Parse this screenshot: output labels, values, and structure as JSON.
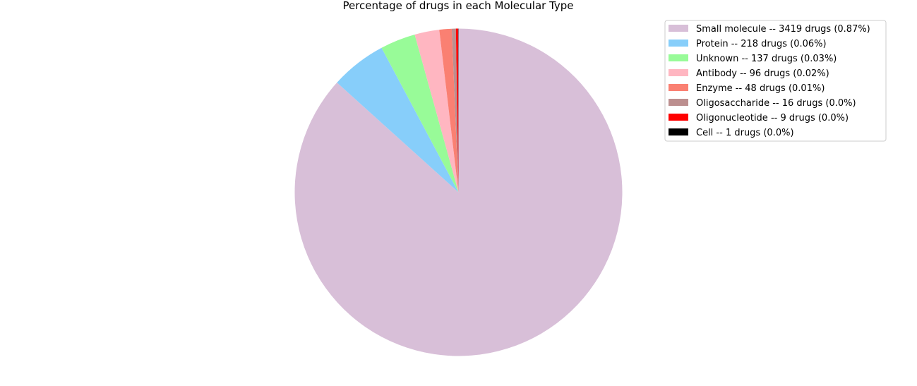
{
  "chart_data": {
    "type": "pie",
    "title": "Percentage of drugs in each Molecular Type",
    "legend_placement": "top-right",
    "start_angle_deg": 90,
    "direction": "clockwise",
    "slices": [
      {
        "name": "Small molecule",
        "value": 3419,
        "legend": "Small molecule -- 3419 drugs (0.87%)",
        "color": "#d8bfd8"
      },
      {
        "name": "Protein",
        "value": 218,
        "legend": "Protein -- 218 drugs (0.06%)",
        "color": "#87cefa"
      },
      {
        "name": "Unknown",
        "value": 137,
        "legend": "Unknown -- 137 drugs (0.03%)",
        "color": "#98fb98"
      },
      {
        "name": "Antibody",
        "value": 96,
        "legend": "Antibody -- 96 drugs (0.02%)",
        "color": "#ffb6c1"
      },
      {
        "name": "Enzyme",
        "value": 48,
        "legend": "Enzyme -- 48 drugs (0.01%)",
        "color": "#fa8072"
      },
      {
        "name": "Oligosaccharide",
        "value": 16,
        "legend": "Oligosaccharide -- 16 drugs (0.0%)",
        "color": "#bc8f8f"
      },
      {
        "name": "Oligonucleotide",
        "value": 9,
        "legend": "Oligonucleotide -- 9 drugs (0.0%)",
        "color": "#ff0000"
      },
      {
        "name": "Cell",
        "value": 1,
        "legend": "Cell -- 1 drugs (0.0%)",
        "color": "#000000"
      }
    ]
  }
}
